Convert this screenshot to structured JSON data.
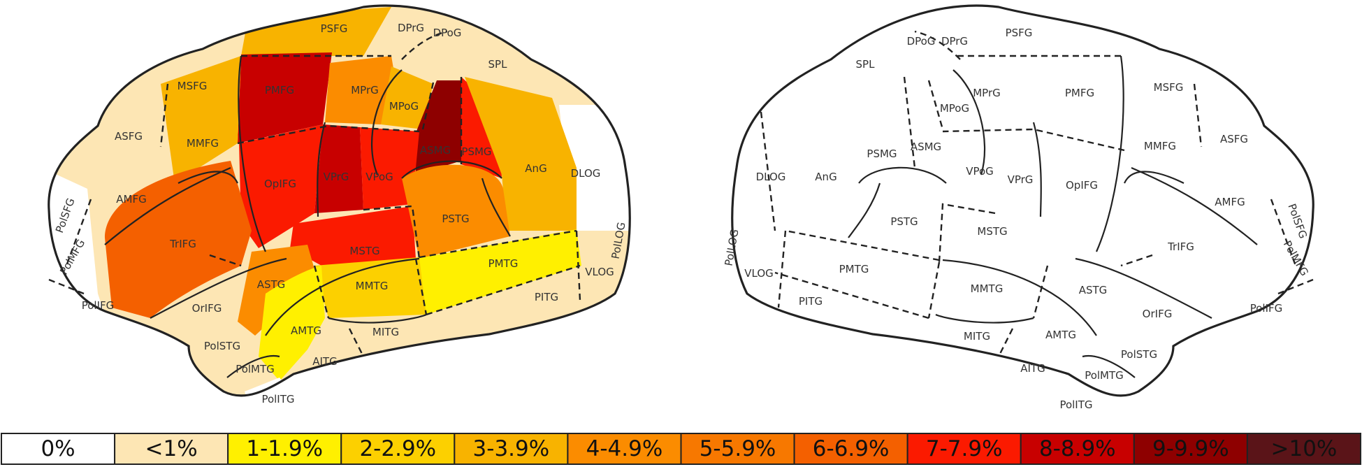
{
  "palette": {
    "0%": "#ffffff",
    "<1%": "#fde6b4",
    "1-1.9%": "#fff000",
    "2-2.9%": "#fcd000",
    "3-3.9%": "#f8b300",
    "4-4.9%": "#fb8c00",
    "5-5.9%": "#f77800",
    "6-6.9%": "#f46000",
    "7-7.9%": "#fb1a00",
    "8-8.9%": "#c80000",
    "9-9.9%": "#8e0000",
    ">10%": "#5a1418"
  },
  "legend": [
    {
      "label": "0%",
      "color": "#ffffff"
    },
    {
      "label": "<1%",
      "color": "#fde6b4"
    },
    {
      "label": "1-1.9%",
      "color": "#fff000"
    },
    {
      "label": "2-2.9%",
      "color": "#fcd000"
    },
    {
      "label": "3-3.9%",
      "color": "#f8b300"
    },
    {
      "label": "4-4.9%",
      "color": "#fb8c00"
    },
    {
      "label": "5-5.9%",
      "color": "#f77800"
    },
    {
      "label": "6-6.9%",
      "color": "#f46000"
    },
    {
      "label": "7-7.9%",
      "color": "#fb1a00"
    },
    {
      "label": "8-8.9%",
      "color": "#c80000"
    },
    {
      "label": "9-9.9%",
      "color": "#8e0000"
    },
    {
      "label": ">10%",
      "color": "#5a1418"
    }
  ],
  "left_hemisphere": {
    "labels": {
      "PSFG": "PSFG",
      "DPrG": "DPrG",
      "DPoG": "DPoG",
      "SPL": "SPL",
      "MSFG": "MSFG",
      "PMFG": "PMFG",
      "MPrG": "MPrG",
      "MPoG": "MPoG",
      "ASFG": "ASFG",
      "MMFG": "MMFG",
      "ASMG": "ASMG",
      "PSMG": "PSMG",
      "AnG": "AnG",
      "OpIFG": "OpIFG",
      "VPrG": "VPrG",
      "VPoG": "VPoG",
      "DLOG": "DLOG",
      "AMFG": "AMFG",
      "PolSFG": "PolSFG",
      "PolMFG": "PolMFG",
      "TrIFG": "TrIFG",
      "MSTG": "MSTG",
      "PSTG": "PSTG",
      "PolLOG": "PolLOG",
      "PMTG": "PMTG",
      "VLOG": "VLOG",
      "PolIFG": "PolIFG",
      "OrIFG": "OrIFG",
      "ASTG": "ASTG",
      "MMTG": "MMTG",
      "PITG": "PITG",
      "AMTG": "AMTG",
      "MITG": "MITG",
      "PolSTG": "PolSTG",
      "PolMTG": "PolMTG",
      "AITG": "AITG",
      "PolITG": "PolITG"
    }
  },
  "right_hemisphere": {
    "labels": {
      "DPoG": "DPoG",
      "DPrG": "DPrG",
      "PSFG": "PSFG",
      "SPL": "SPL",
      "MPoG": "MPoG",
      "MPrG": "MPrG",
      "PMFG": "PMFG",
      "MSFG": "MSFG",
      "PSMG": "PSMG",
      "ASMG": "ASMG",
      "MMFG": "MMFG",
      "ASFG": "ASFG",
      "DLOG": "DLOG",
      "AnG": "AnG",
      "VPoG": "VPoG",
      "VPrG": "VPrG",
      "OpIFG": "OpIFG",
      "AMFG": "AMFG",
      "PSTG": "PSTG",
      "MSTG": "MSTG",
      "PolSFG": "PolSFG",
      "TrIFG": "TrIFG",
      "PolLOG": "PolLOG",
      "PolMFG": "PolMFG",
      "VLOG": "VLOG",
      "PMTG": "PMTG",
      "MMTG": "MMTG",
      "ASTG": "ASTG",
      "PITG": "PITG",
      "OrIFG": "OrIFG",
      "PolIFG": "PolIFG",
      "AMTG": "AMTG",
      "MITG": "MITG",
      "PolSTG": "PolSTG",
      "AITG": "AITG",
      "PolMTG": "PolMTG",
      "PolITG": "PolITG"
    }
  }
}
